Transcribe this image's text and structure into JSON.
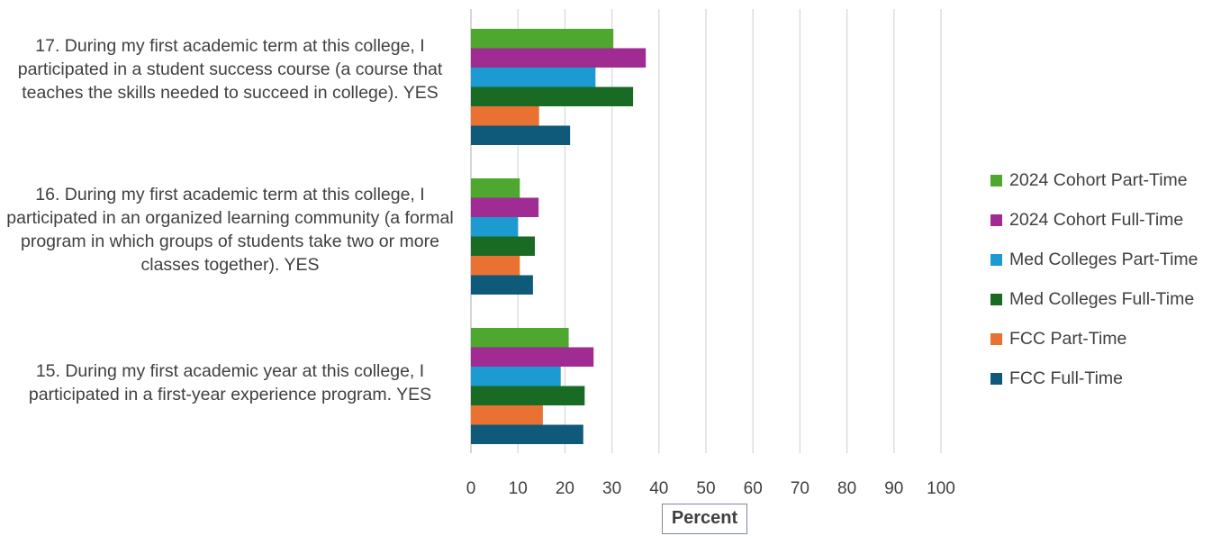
{
  "chart_data": {
    "type": "bar",
    "orientation": "horizontal",
    "categories": [
      "17. During my first academic term at this college, I participated in a student success course (a course that teaches the skills needed to succeed in college). YES",
      "16. During my first academic term at this college, I participated in an organized learning community (a formal program in which groups of students take two or more classes together). YES",
      "15. During my first academic year at this college, I participated in a first-year experience program. YES"
    ],
    "series": [
      {
        "name": "2024 Cohort Part-Time",
        "color": "#4ea72e",
        "values": [
          30.3,
          10.4,
          20.8
        ]
      },
      {
        "name": "2024 Cohort Full-Time",
        "color": "#a02b93",
        "values": [
          37.2,
          14.4,
          26.1
        ]
      },
      {
        "name": "Med Colleges Part-Time",
        "color": "#1b9bd1",
        "values": [
          26.5,
          10.0,
          19.1
        ]
      },
      {
        "name": "Med Colleges Full-Time",
        "color": "#196b24",
        "values": [
          34.5,
          13.6,
          24.2
        ]
      },
      {
        "name": "FCC Part-Time",
        "color": "#e97132",
        "values": [
          14.5,
          10.4,
          15.3
        ]
      },
      {
        "name": "FCC Full-Time",
        "color": "#0f5a7a",
        "values": [
          21.1,
          13.2,
          23.9
        ]
      }
    ],
    "xticks": [
      "0",
      "10",
      "20",
      "30",
      "40",
      "50",
      "60",
      "70",
      "80",
      "90",
      "100"
    ],
    "xlim": [
      0,
      100
    ],
    "xlabel": "Percent",
    "grid": "vertical",
    "legend_position": "right"
  }
}
